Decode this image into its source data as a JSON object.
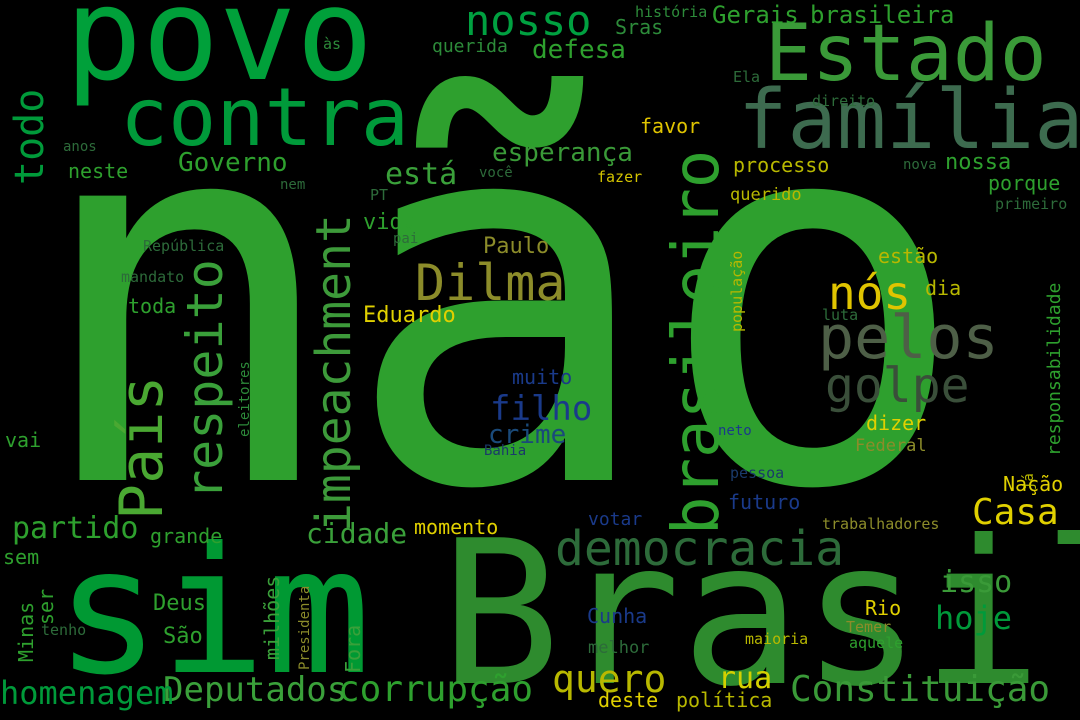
{
  "words": [
    {
      "text": "não",
      "color": "#2ea02e"
    },
    {
      "text": "Brasil",
      "color": "#2e8b2e"
    },
    {
      "text": "sim",
      "color": "#009933"
    },
    {
      "text": "povo",
      "color": "#00a03a"
    },
    {
      "text": "família",
      "color": "#3d6b4f"
    },
    {
      "text": "Estado",
      "color": "#3a9a38"
    },
    {
      "text": "contra",
      "color": "#009a3a"
    },
    {
      "text": "brasileiro",
      "color": "#2ea02e"
    },
    {
      "text": "País",
      "color": "#4aa832"
    },
    {
      "text": "democracia",
      "color": "#2d6b3a"
    },
    {
      "text": "impeachment",
      "color": "#3d9a3a"
    },
    {
      "text": "respeito",
      "color": "#3aa03a"
    },
    {
      "text": "pelos",
      "color": "#4e5f47"
    },
    {
      "text": "golpe",
      "color": "#3a4f3a"
    },
    {
      "text": "Dilma",
      "color": "#8c8c2a"
    },
    {
      "text": "nós",
      "color": "#e0c400"
    },
    {
      "text": "nosso",
      "color": "#00a040"
    },
    {
      "text": "todo",
      "color": "#009a3a"
    },
    {
      "text": "Constituição",
      "color": "#3a9a38"
    },
    {
      "text": "corrupção",
      "color": "#2ea02e"
    },
    {
      "text": "Deputados",
      "color": "#3aa03a"
    },
    {
      "text": "homenagem",
      "color": "#009a3a"
    },
    {
      "text": "quero",
      "color": "#b8b800"
    },
    {
      "text": "Casa",
      "color": "#e0d000"
    },
    {
      "text": "rua",
      "color": "#d4d000"
    },
    {
      "text": "hoje",
      "color": "#009a3a"
    },
    {
      "text": "isso",
      "color": "#3a9a38"
    },
    {
      "text": "filho",
      "color": "#1a3a8a"
    },
    {
      "text": "crime",
      "color": "#1a4a7a"
    },
    {
      "text": "muito",
      "color": "#1a3a8a"
    },
    {
      "text": "partido",
      "color": "#2ea02e"
    },
    {
      "text": "cidade",
      "color": "#3aa03a"
    },
    {
      "text": "Governo",
      "color": "#2ea02e"
    },
    {
      "text": "está",
      "color": "#3aa03a"
    },
    {
      "text": "esperança",
      "color": "#3a9a38"
    },
    {
      "text": "defesa",
      "color": "#2ea02e"
    },
    {
      "text": "Gerais",
      "color": "#2ea02e"
    },
    {
      "text": "brasileira",
      "color": "#2ea02e"
    },
    {
      "text": "querida",
      "color": "#2d8b3a"
    },
    {
      "text": "Sras",
      "color": "#2d8b3a"
    },
    {
      "text": "história",
      "color": "#2d8b3a"
    },
    {
      "text": "às",
      "color": "#2d8b3a"
    },
    {
      "text": "Ela",
      "color": "#2d6b3a"
    },
    {
      "text": "direito",
      "color": "#2d6b3a"
    },
    {
      "text": "favor",
      "color": "#e0c400"
    },
    {
      "text": "processo",
      "color": "#b8b800"
    },
    {
      "text": "nossa",
      "color": "#2ea02e"
    },
    {
      "text": "nova",
      "color": "#2d6b3a"
    },
    {
      "text": "porque",
      "color": "#2ea02e"
    },
    {
      "text": "querido",
      "color": "#b8b800"
    },
    {
      "text": "primeiro",
      "color": "#2d6b3a"
    },
    {
      "text": "fazer",
      "color": "#d4c400"
    },
    {
      "text": "você",
      "color": "#2d6b3a"
    },
    {
      "text": "PT",
      "color": "#2d6b3a"
    },
    {
      "text": "nem",
      "color": "#2d6b3a"
    },
    {
      "text": "anos",
      "color": "#2d6b3a"
    },
    {
      "text": "neste",
      "color": "#2ea02e"
    },
    {
      "text": "vida",
      "color": "#2ea02e"
    },
    {
      "text": "pai",
      "color": "#2d6b3a"
    },
    {
      "text": "Paulo",
      "color": "#8c8c2a"
    },
    {
      "text": "República",
      "color": "#2d6b3a"
    },
    {
      "text": "mandato",
      "color": "#2d6b3a"
    },
    {
      "text": "toda",
      "color": "#2ea02e"
    },
    {
      "text": "Eduardo",
      "color": "#e0d000"
    },
    {
      "text": "estão",
      "color": "#b8b800"
    },
    {
      "text": "dia",
      "color": "#b8b800"
    },
    {
      "text": "população",
      "color": "#b8b800"
    },
    {
      "text": "luta",
      "color": "#2d6b3a"
    },
    {
      "text": "responsabilidade",
      "color": "#2ea02e"
    },
    {
      "text": "dizer",
      "color": "#e0d000"
    },
    {
      "text": "Federal",
      "color": "#8c8c2a"
    },
    {
      "text": "neto",
      "color": "#1a3a8a"
    },
    {
      "text": "Bahia",
      "color": "#1a3a6a"
    },
    {
      "text": "vai",
      "color": "#2ea02e"
    },
    {
      "text": "eleitores",
      "color": "#2d8b3a"
    },
    {
      "text": "pessoa",
      "color": "#1a3a6a"
    },
    {
      "text": "futuro",
      "color": "#1a3a8a"
    },
    {
      "text": "votar",
      "color": "#1a3a8a"
    },
    {
      "text": "Nação",
      "color": "#e0d000"
    },
    {
      "text": "já",
      "color": "#b8b800"
    },
    {
      "text": "trabalhadores",
      "color": "#8c8c2a"
    },
    {
      "text": "momento",
      "color": "#e0d000"
    },
    {
      "text": "grande",
      "color": "#2ea02e"
    },
    {
      "text": "sem",
      "color": "#2ea02e"
    },
    {
      "text": "ser",
      "color": "#2ea02e"
    },
    {
      "text": "Minas",
      "color": "#2ea02e"
    },
    {
      "text": "tenho",
      "color": "#2d6b3a"
    },
    {
      "text": "Deus",
      "color": "#2ea02e"
    },
    {
      "text": "São",
      "color": "#2ea02e"
    },
    {
      "text": "milhões",
      "color": "#3aa03a"
    },
    {
      "text": "Presidenta",
      "color": "#8c8c2a"
    },
    {
      "text": "Fora",
      "color": "#3aa03a"
    },
    {
      "text": "Cunha",
      "color": "#1a3a8a"
    },
    {
      "text": "melhor",
      "color": "#2d6b3a"
    },
    {
      "text": "Rio",
      "color": "#e0d000"
    },
    {
      "text": "maioria",
      "color": "#b8b800"
    },
    {
      "text": "Temer",
      "color": "#8c8c2a"
    },
    {
      "text": "aquele",
      "color": "#2ea02e"
    },
    {
      "text": "deste",
      "color": "#e0d000"
    },
    {
      "text": "política",
      "color": "#b8b800"
    }
  ]
}
